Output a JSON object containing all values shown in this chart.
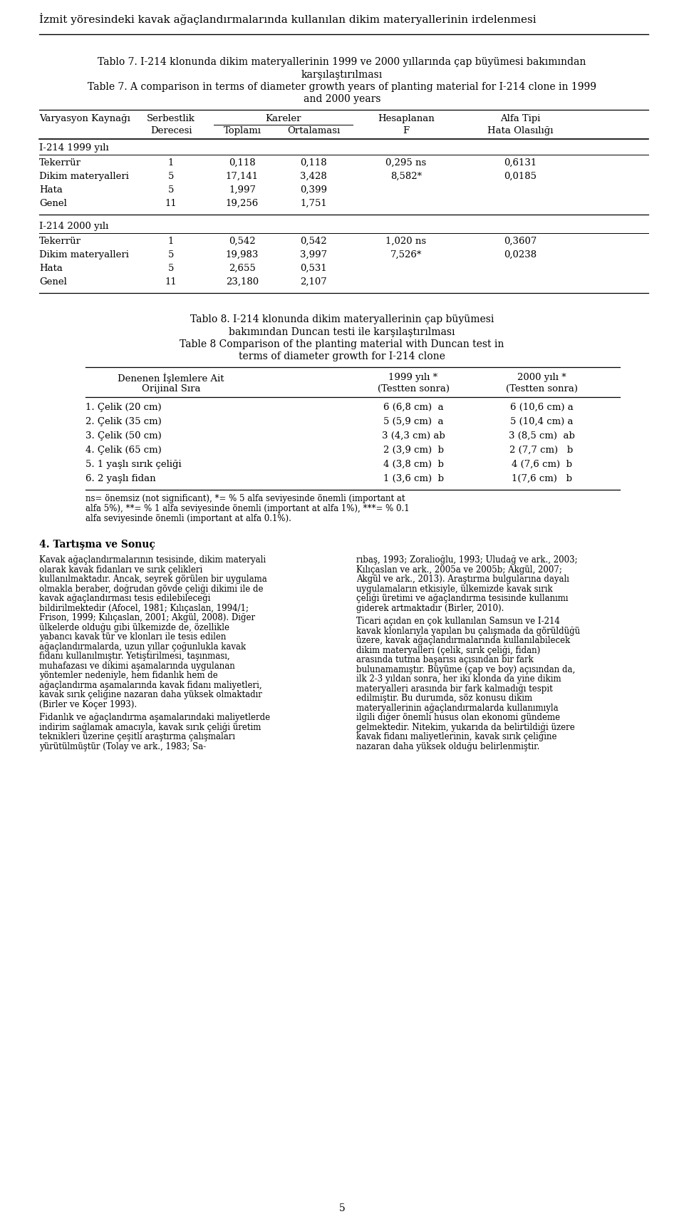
{
  "page_title": "İzmit yöresindeki kavak ağaçlandırmalarında kullanılan dikim materyallerinin irdelenmesi",
  "tablo7_title_tr_1": "Tablo 7. I-214 klonunda dikim materyallerinin 1999 ve 2000 yıllarında çap büyümesi bakımından",
  "tablo7_title_tr_2": "karşılaştırılması",
  "tablo7_title_en_1": "Table 7. A comparison in terms of diameter growth years of planting material for I-214 clone in 1999",
  "tablo7_title_en_2": "and 2000 years",
  "table7_data": [
    {
      "section": "I-214 1999 yılı",
      "rows": [
        [
          "Tekerrür",
          "1",
          "0,118",
          "0,118",
          "0,295 ns",
          "0,6131"
        ],
        [
          "Dikim materyalleri",
          "5",
          "17,141",
          "3,428",
          "8,582*",
          "0,0185"
        ],
        [
          "Hata",
          "5",
          "1,997",
          "0,399",
          "",
          ""
        ],
        [
          "Genel",
          "11",
          "19,256",
          "1,751",
          "",
          ""
        ]
      ]
    },
    {
      "section": "I-214 2000 yılı",
      "rows": [
        [
          "Tekerrür",
          "1",
          "0,542",
          "0,542",
          "1,020 ns",
          "0,3607"
        ],
        [
          "Dikim materyalleri",
          "5",
          "19,983",
          "3,997",
          "7,526*",
          "0,0238"
        ],
        [
          "Hata",
          "5",
          "2,655",
          "0,531",
          "",
          ""
        ],
        [
          "Genel",
          "11",
          "23,180",
          "2,107",
          "",
          ""
        ]
      ]
    }
  ],
  "tablo8_title_tr_1": "Tablo 8. I-214 klonunda dikim materyallerinin çap büyümesi",
  "tablo8_title_tr_2": "bakımından Duncan testi ile karşılaştırılması",
  "tablo8_title_en_1": "Table 8 Comparison of the planting material with Duncan test in",
  "tablo8_title_en_2": "terms of diameter growth for I-214 clone",
  "table8_data": [
    [
      "1. Çelik (20 cm)",
      "6 (6,8 cm)  a",
      "6 (10,6 cm) a"
    ],
    [
      "2. Çelik (35 cm)",
      "5 (5,9 cm)  a",
      "5 (10,4 cm) a"
    ],
    [
      "3. Çelik (50 cm)",
      "3 (4,3 cm) ab",
      "3 (8,5 cm)  ab"
    ],
    [
      "4. Çelik (65 cm)",
      "2 (3,9 cm)  b",
      "2 (7,7 cm)   b"
    ],
    [
      "5. 1 yaşlı sırık çeliği",
      "4 (3,8 cm)  b",
      "4 (7,6 cm)  b"
    ],
    [
      "6. 2 yaşlı fidan",
      "1 (3,6 cm)  b",
      "1(7,6 cm)   b"
    ]
  ],
  "footnote_lines": [
    "ns= önemsiz (not significant), *= % 5 alfa seviyesinde önemli (important at",
    "alfa 5%), **= % 1 alfa seviyesinde önemli (important at alfa 1%), ***= % 0.1",
    "alfa seviyesinde önemli (important at alfa 0.1%)."
  ],
  "section4_title": "4. Tartışma ve Sonuç",
  "left_para1": "Kavak ağaçlandırmalarının tesisinde, dikim materyali olarak kavak fidanları ve sırık çelikleri kullanılmaktadır. Ancak, seyrek görülen bir uygulama olmakla beraber, doğrudan gövde çeliği dikimi ile de kavak ağaçlandırması tesis edilebileceği bildirilmektedir (Afocel, 1981; Kılıçaslan, 1994/1; Frison, 1999; Kılıçaslan, 2001; Akgül, 2008). Diğer ülkelerde olduğu gibi ülkemizde de, özellikle yabancı kavak tür ve klonları ile tesis edilen ağaçlandırmalarda, uzun yıllar çoğunlukla kavak fidanı kullanılmıştır. Yetiştirilmesi, taşınması, muhafazası ve dikimi aşamalarında uygulanan yöntemler nedeniyle, hem fidanlık hem de ağaçlandırma aşamalarında kavak fidanı maliyetleri, kavak sırık çeliğine nazaran daha yüksek olmaktadır (Birler ve Koçer 1993).",
  "left_para2": "Fidanlık ve ağaçlandırma aşamalarındaki maliyetlerde indirim sağlamak amacıyla, kavak sırık çeliği üretim teknikleri üzerine çeşitli araştırma çalışmaları yürütülmüştür (Tolay ve ark., 1983; Sa-",
  "right_para1": "rıbaş, 1993; Zoralioğlu, 1993; Uludağ ve ark., 2003; Kılıçaslan ve ark., 2005a ve 2005b; Akgül, 2007; Akgül ve ark., 2013). Araştırma bulgularına dayalı uygulamaların etkisiyle, ülkemizde kavak sırık çeliği üretimi ve ağaçlandırma tesisinde kullanımı giderek artmaktadır (Birler, 2010).",
  "right_para2": "Ticari açıdan en çok kullanılan Samsun ve I-214 kavak klonlarıyla yapılan bu çalışmada da görüldüğü üzere, kavak ağaçlandırmalarında kullanılabilecek dikim materyalleri (çelik, sırık çeliği, fidan) arasında tutma başarısı açısından bir fark bulunamamıştır. Büyüme (çap ve boy) açısından da, ilk 2-3 yıldan sonra, her iki klonda da yine dikim materyalleri arasında bir fark kalmadığı tespit edilmiştir. Bu durumda, söz konusu dikim materyallerinin ağaçlandırmalarda kullanımıyla ilgili diğer önemli husus olan ekonomi gündeme gelmektedir. Nitekim, yukarıda da belirtildiği üzere kavak fidanı maliyetlerinin, kavak sırık çeliğine nazaran daha yüksek olduğu belirlenmiştir."
}
